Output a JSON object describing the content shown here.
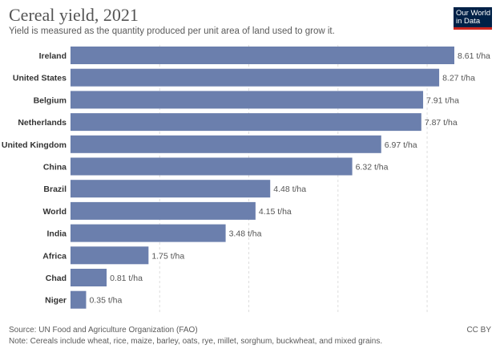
{
  "header": {
    "title": "Cereal yield, 2021",
    "subtitle": "Yield is measured as the quantity produced per unit area of land used to grow it.",
    "logo_line1": "Our World",
    "logo_line2": "in Data"
  },
  "footer": {
    "source": "Source: UN Food and Agriculture Organization (FAO)",
    "note": "Note: Cereals include wheat, rice, maize, barley, oats, rye, millet, sorghum, buckwheat, and mixed grains.",
    "license": "CC BY"
  },
  "colors": {
    "bar": "#6b7fad",
    "grid": "#dddddd",
    "label": "#333333",
    "value": "#555555"
  },
  "chart_data": {
    "type": "bar",
    "orientation": "horizontal",
    "unit": "t/ha",
    "categories": [
      "Ireland",
      "United States",
      "Belgium",
      "Netherlands",
      "United Kingdom",
      "China",
      "Brazil",
      "World",
      "India",
      "Africa",
      "Chad",
      "Niger"
    ],
    "values": [
      8.61,
      8.27,
      7.91,
      7.87,
      6.97,
      6.32,
      4.48,
      4.15,
      3.48,
      1.75,
      0.81,
      0.35
    ],
    "value_labels": [
      "8.61 t/ha",
      "8.27 t/ha",
      "7.91 t/ha",
      "7.87 t/ha",
      "6.97 t/ha",
      "6.32 t/ha",
      "4.48 t/ha",
      "4.15 t/ha",
      "3.48 t/ha",
      "1.75 t/ha",
      "0.81 t/ha",
      "0.35 t/ha"
    ],
    "xlim": [
      0,
      8.61
    ],
    "gridlines": [
      2,
      4,
      6,
      8
    ],
    "grid": true,
    "grid_style": "dashed"
  }
}
